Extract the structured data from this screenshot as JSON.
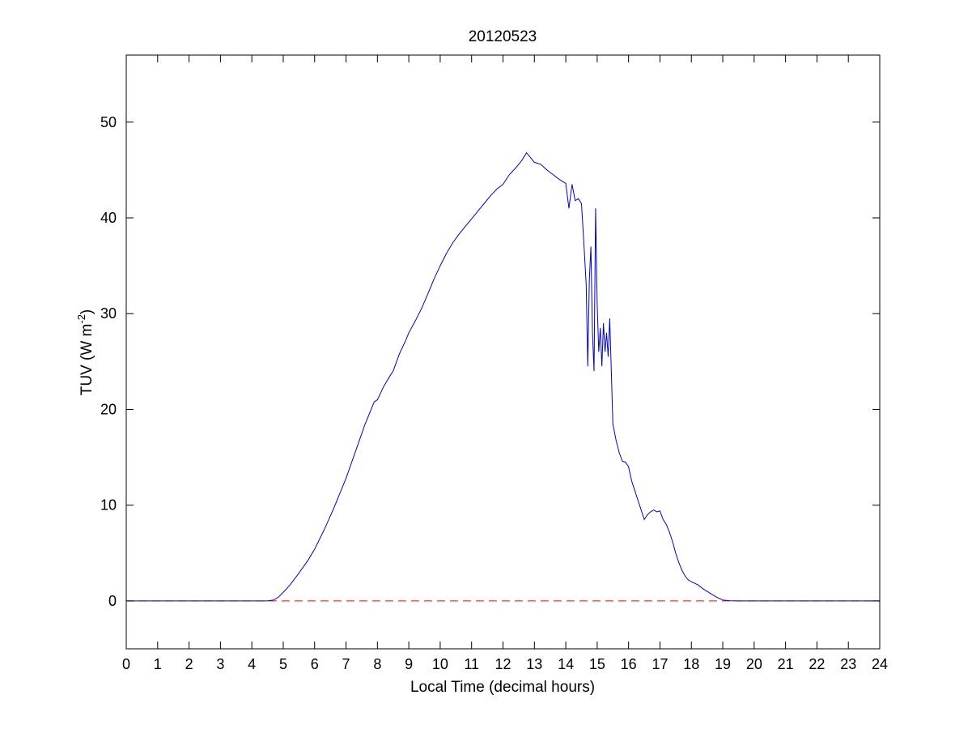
{
  "chart_data": {
    "type": "line",
    "title": "20120523",
    "xlabel": "Local Time (decimal hours)",
    "ylabel_main": "TUV (W m",
    "ylabel_exponent": "-2",
    "ylabel_close": ")",
    "xlim": [
      0,
      24
    ],
    "ylim": [
      -5,
      57
    ],
    "xticks": [
      0,
      1,
      2,
      3,
      4,
      5,
      6,
      7,
      8,
      9,
      10,
      11,
      12,
      13,
      14,
      15,
      16,
      17,
      18,
      19,
      20,
      21,
      22,
      23,
      24
    ],
    "yticks": [
      0,
      10,
      20,
      30,
      40,
      50
    ],
    "grid": false,
    "series": [
      {
        "color": "#0000cc",
        "style": "solid",
        "x": [
          0,
          4.5,
          4.7,
          4.85,
          5.0,
          5.2,
          5.5,
          5.8,
          6.0,
          6.3,
          6.6,
          7.0,
          7.3,
          7.6,
          7.9,
          8.0,
          8.2,
          8.4,
          8.5,
          8.7,
          8.9,
          9.0,
          9.2,
          9.4,
          9.6,
          9.8,
          10.0,
          10.2,
          10.4,
          10.6,
          10.8,
          11.0,
          11.2,
          11.4,
          11.6,
          11.8,
          12.0,
          12.2,
          12.4,
          12.6,
          12.75,
          12.9,
          13.0,
          13.2,
          13.4,
          13.6,
          13.8,
          14.0,
          14.1,
          14.2,
          14.3,
          14.4,
          14.5,
          14.6,
          14.65,
          14.7,
          14.75,
          14.8,
          14.85,
          14.9,
          14.95,
          15.0,
          15.05,
          15.1,
          15.15,
          15.2,
          15.25,
          15.3,
          15.35,
          15.4,
          15.5,
          15.6,
          15.7,
          15.8,
          15.9,
          16.0,
          16.1,
          16.2,
          16.3,
          16.4,
          16.5,
          16.6,
          16.7,
          16.8,
          16.9,
          17.0,
          17.1,
          17.2,
          17.3,
          17.4,
          17.5,
          17.6,
          17.7,
          17.8,
          17.9,
          18.0,
          18.2,
          18.4,
          18.6,
          18.8,
          19.0,
          19.2,
          19.4,
          19.6,
          19.8,
          20.0,
          24
        ],
        "y": [
          0,
          0,
          0.1,
          0.4,
          0.9,
          1.6,
          2.9,
          4.3,
          5.4,
          7.4,
          9.6,
          12.8,
          15.6,
          18.4,
          20.8,
          21.0,
          22.4,
          23.5,
          24.0,
          25.8,
          27.2,
          28.0,
          29.2,
          30.5,
          32.0,
          33.6,
          35.0,
          36.3,
          37.4,
          38.3,
          39.1,
          39.9,
          40.7,
          41.5,
          42.3,
          43.0,
          43.5,
          44.5,
          45.2,
          46.0,
          46.8,
          46.2,
          45.8,
          45.6,
          45.0,
          44.5,
          44.0,
          43.6,
          41.0,
          43.5,
          41.8,
          42.0,
          41.5,
          36.0,
          33.0,
          24.5,
          33.5,
          37.0,
          28.0,
          24.0,
          41.0,
          31.0,
          26.0,
          28.5,
          24.5,
          29.0,
          26.0,
          28.0,
          25.5,
          29.5,
          18.5,
          16.8,
          15.5,
          14.6,
          14.5,
          14.0,
          12.5,
          11.5,
          10.5,
          9.5,
          8.5,
          9.0,
          9.3,
          9.5,
          9.3,
          9.4,
          8.5,
          8.0,
          7.2,
          6.2,
          5.0,
          4.0,
          3.2,
          2.6,
          2.2,
          2.0,
          1.7,
          1.2,
          0.8,
          0.4,
          0.1,
          0.02,
          0,
          0,
          0,
          0,
          0
        ]
      },
      {
        "color": "#ff0000",
        "style": "dashed",
        "x": [
          0,
          24
        ],
        "y": [
          0,
          0
        ]
      }
    ]
  }
}
